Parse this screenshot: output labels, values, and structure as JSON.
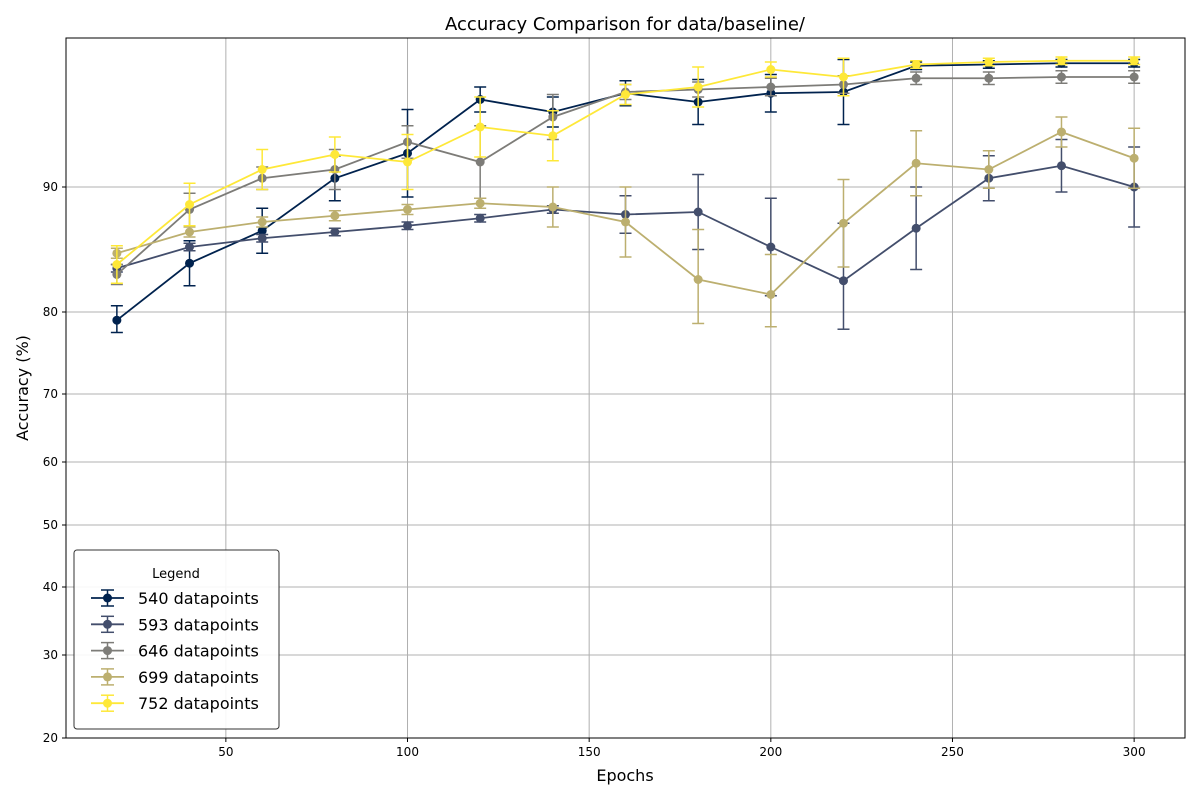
{
  "chart_data": {
    "type": "line",
    "title": "Accuracy Comparison for data/baseline/",
    "xlabel": "Epochs",
    "ylabel": "Accuracy (%)",
    "x_ticks": [
      50,
      100,
      150,
      200,
      250,
      300
    ],
    "y_ticks": [
      20,
      30,
      40,
      50,
      60,
      70,
      80,
      90
    ],
    "xlim": [
      6,
      314
    ],
    "grid": true,
    "legend": {
      "title": "Legend",
      "position": "lower-left"
    },
    "x": [
      20,
      40,
      60,
      80,
      100,
      120,
      140,
      160,
      180,
      200,
      220,
      240,
      260,
      280,
      300
    ],
    "series": [
      {
        "name": "540 datapoints",
        "color": "#00224e",
        "values": [
          79.0,
          83.9,
          86.5,
          90.7,
          92.7,
          97.0,
          96.0,
          97.5,
          96.8,
          97.5,
          97.6,
          99.7,
          99.8,
          99.9,
          99.9
        ],
        "errors": [
          1.5,
          1.8,
          1.8,
          1.8,
          3.5,
          1.0,
          1.2,
          1.0,
          1.8,
          1.5,
          2.6,
          0.3,
          0.3,
          0.3,
          0.3
        ]
      },
      {
        "name": "593 datapoints",
        "color": "#434e6c",
        "values": [
          83.5,
          85.2,
          85.9,
          86.4,
          86.9,
          87.5,
          88.2,
          87.8,
          88.0,
          85.2,
          82.5,
          86.7,
          90.7,
          91.7,
          90.0
        ],
        "errors": [
          0.3,
          0.3,
          0.3,
          0.3,
          0.3,
          0.3,
          0.3,
          1.5,
          3.0,
          3.9,
          4.6,
          3.3,
          1.8,
          2.1,
          3.2
        ]
      },
      {
        "name": "646 datapoints",
        "color": "#7d7c78",
        "values": [
          83.0,
          88.2,
          90.7,
          91.4,
          93.6,
          92.0,
          95.6,
          97.6,
          97.8,
          98.0,
          98.2,
          98.7,
          98.7,
          98.8,
          98.8
        ],
        "errors": [
          0.8,
          1.3,
          0.9,
          1.6,
          1.3,
          2.9,
          1.8,
          0.6,
          0.6,
          0.7,
          0.7,
          0.5,
          0.5,
          0.5,
          0.5
        ]
      },
      {
        "name": "699 datapoints",
        "color": "#bcaf6f",
        "values": [
          84.7,
          86.4,
          87.2,
          87.7,
          88.2,
          88.7,
          88.4,
          87.2,
          82.6,
          81.4,
          87.1,
          91.9,
          91.4,
          94.4,
          92.3
        ],
        "errors": [
          0.4,
          0.4,
          0.4,
          0.4,
          0.4,
          0.4,
          1.6,
          2.8,
          4.0,
          3.2,
          3.5,
          2.6,
          1.5,
          1.2,
          2.4
        ]
      },
      {
        "name": "752 datapoints",
        "color": "#fee838",
        "values": [
          83.8,
          88.6,
          91.4,
          92.6,
          92.0,
          94.8,
          94.1,
          97.4,
          98.0,
          99.4,
          98.8,
          99.8,
          100.0,
          100.1,
          100.1
        ],
        "errors": [
          1.5,
          1.7,
          1.6,
          1.4,
          2.2,
          2.4,
          2.0,
          0.8,
          1.6,
          0.6,
          1.5,
          0.3,
          0.3,
          0.3,
          0.3
        ]
      }
    ]
  }
}
